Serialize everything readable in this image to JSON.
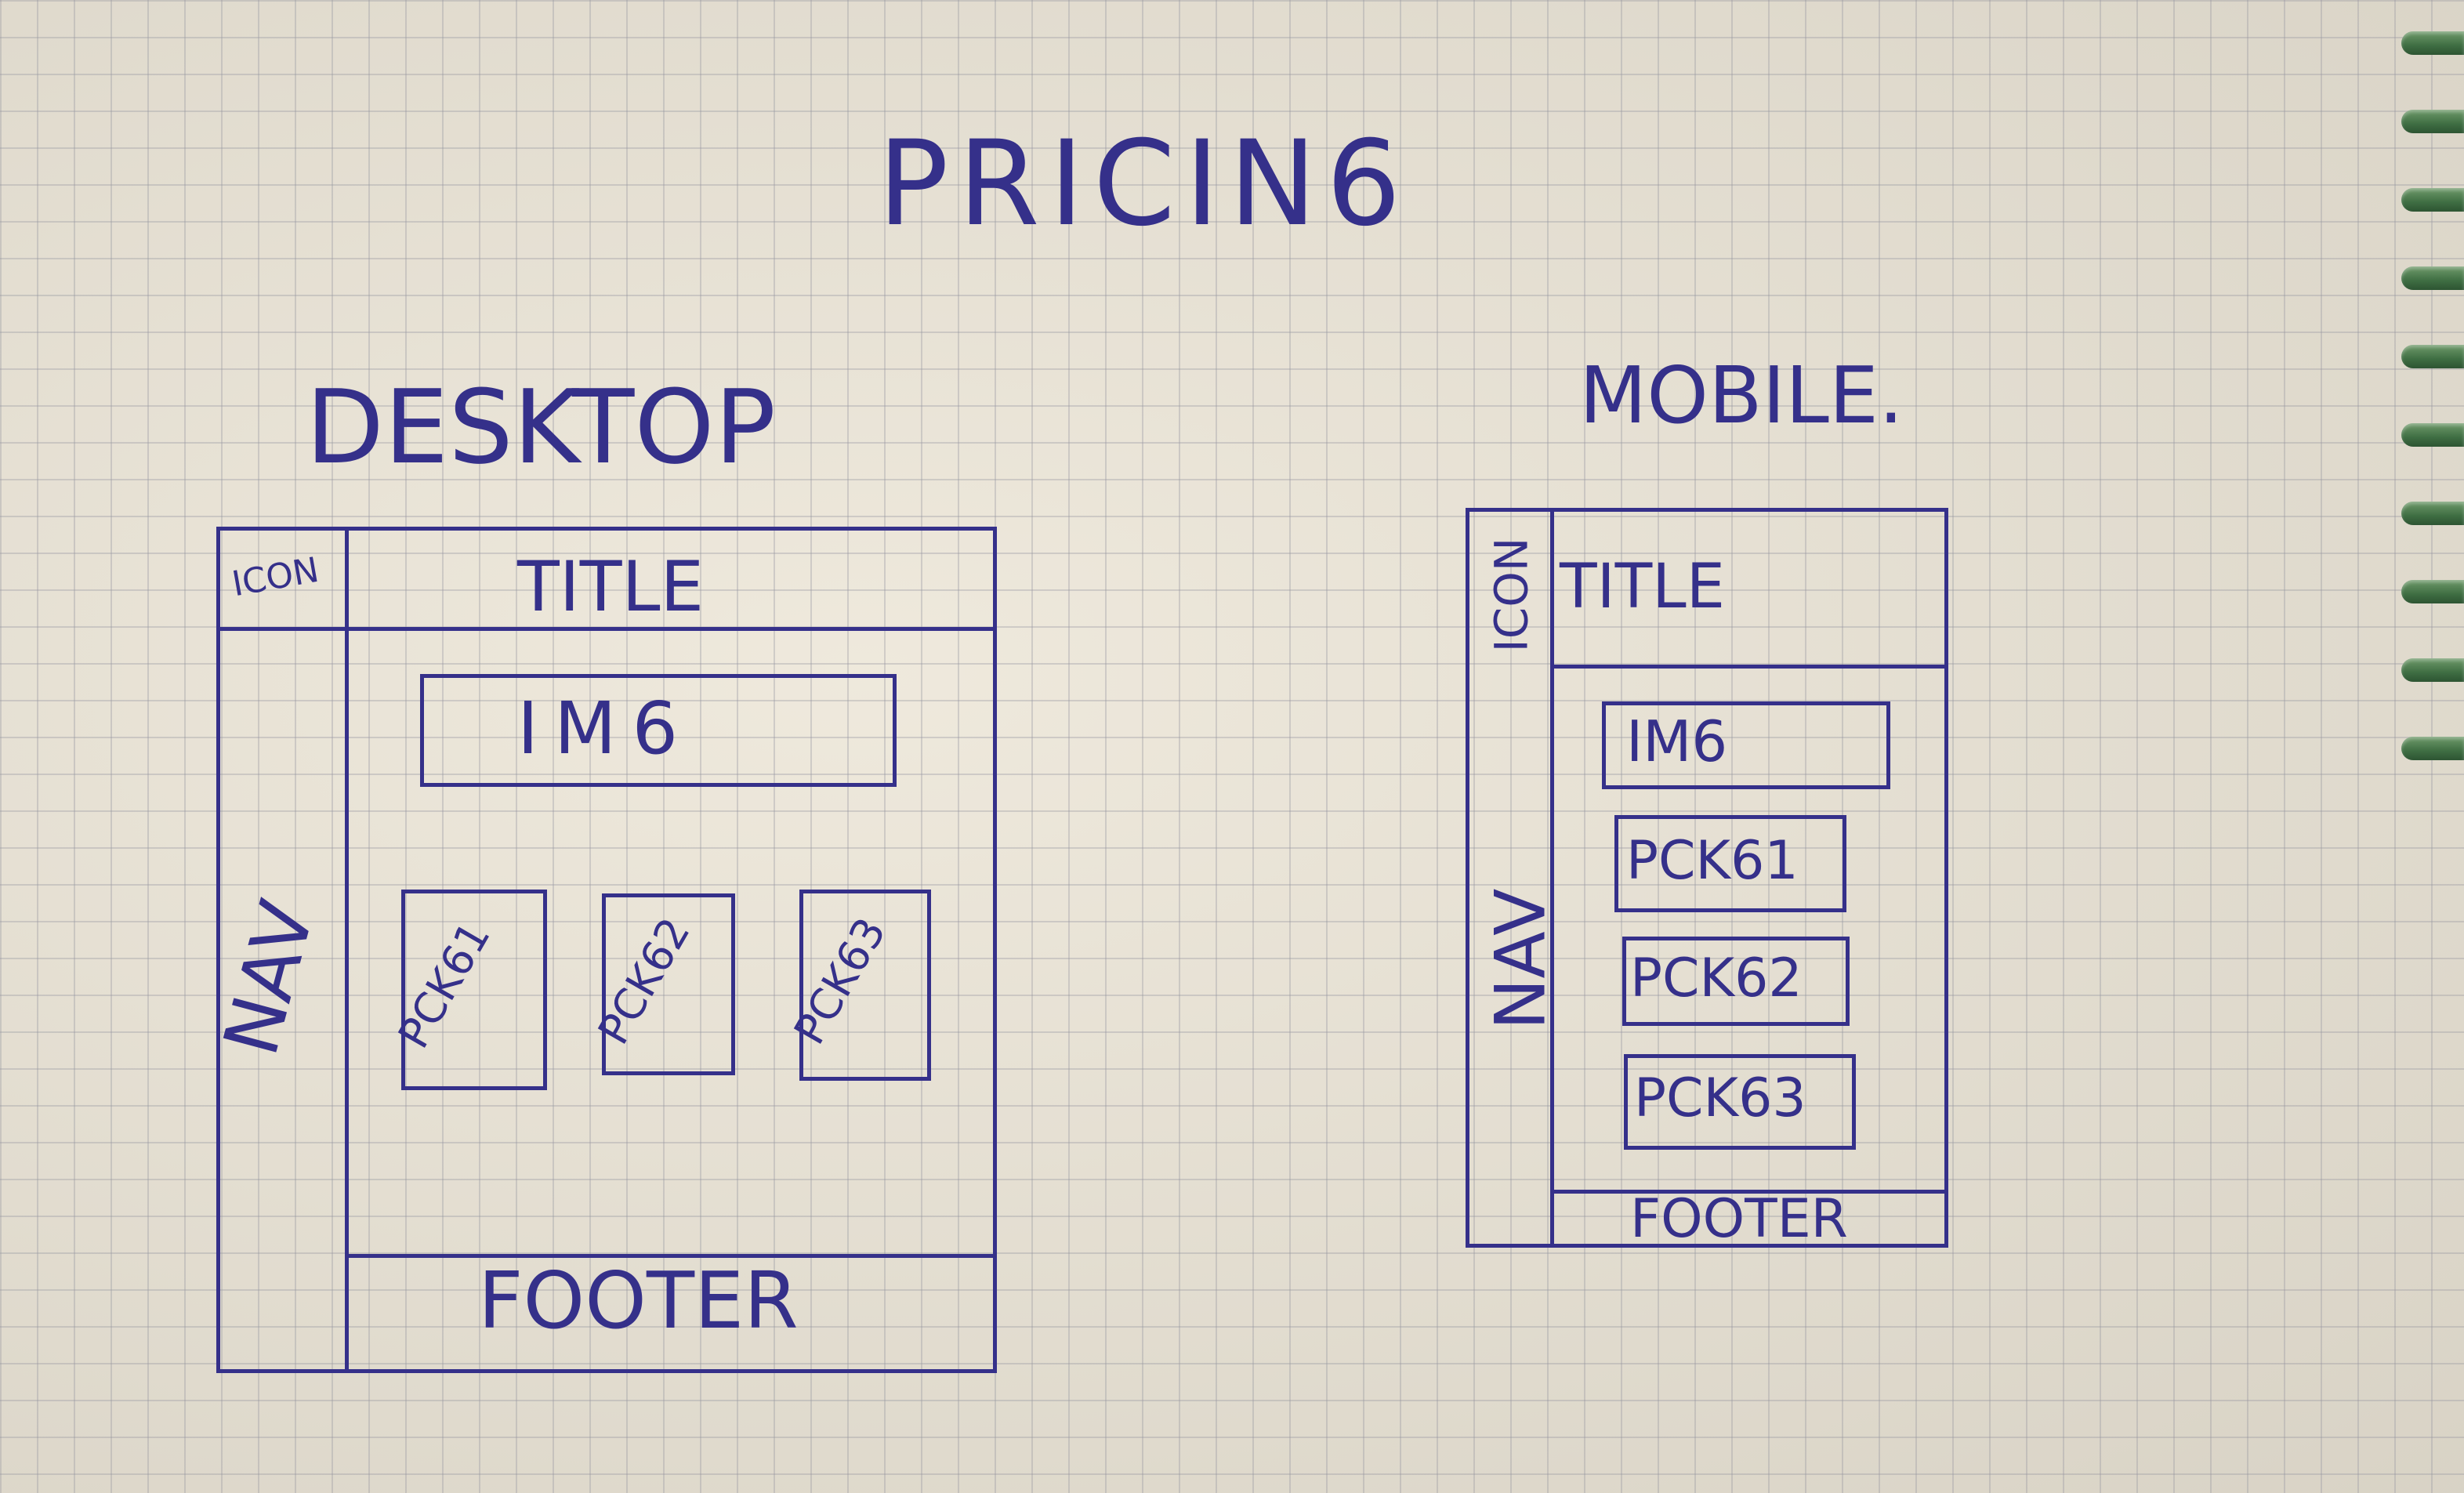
{
  "page_title": "PRICIN6",
  "desktop": {
    "label": "DESKTOP",
    "icon": "ICON",
    "title": "TITLE",
    "nav": "NAV",
    "img": "IM6",
    "packages": [
      "PCK61",
      "PCK62",
      "PCK63"
    ],
    "footer": "FOOTER"
  },
  "mobile": {
    "label": "MOBILE.",
    "icon": "ICON",
    "title": "TITLE",
    "nav": "NAV",
    "img": "IM6",
    "packages": [
      "PCK61",
      "PCK62",
      "PCK63"
    ],
    "footer": "FOOTER"
  },
  "colors": {
    "ink": "#35308a",
    "paper": "#e6e0d2",
    "grid": "#a0a0ae",
    "binding": "#3f6e43"
  }
}
